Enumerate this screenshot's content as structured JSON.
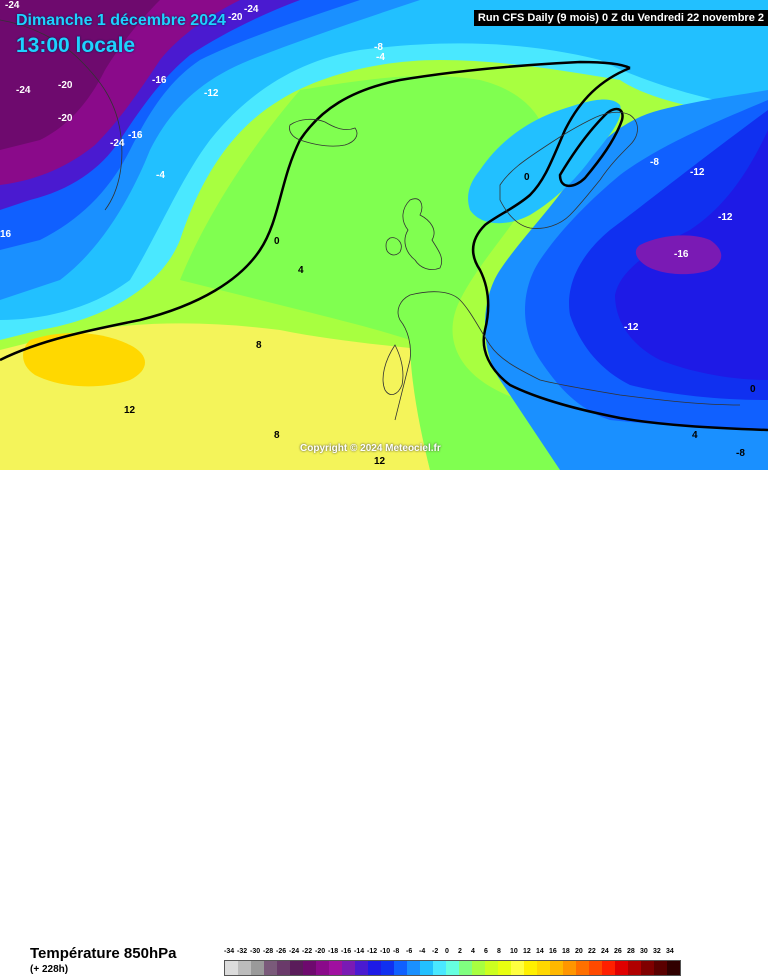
{
  "header": {
    "date": "Dimanche 1 décembre 2024",
    "time": "13:00 locale",
    "run": "Run CFS Daily (9 mois) 0 Z du Vendredi 22 novembre 2"
  },
  "map": {
    "copyright": "Copyright © 2024 Meteociel.fr",
    "contour_labels": [
      "-24",
      "-20",
      "-24",
      "-24",
      "-20",
      "-16",
      "-12",
      "-8",
      "-4",
      "-20",
      "-24",
      "-16",
      "-4",
      "0",
      "4",
      "8",
      "12",
      "16",
      "0",
      "-8",
      "-12",
      "-12",
      "-16",
      "-12",
      "0",
      "4",
      "8",
      "12",
      "-8"
    ]
  },
  "footer": {
    "variable": "Température 850hPa",
    "step": "(+ 228h)"
  },
  "legend": {
    "ticks": [
      "-34",
      "-32",
      "-30",
      "-28",
      "-26",
      "-24",
      "-22",
      "-20",
      "-18",
      "-16",
      "-14",
      "-12",
      "-10",
      "-8",
      "-6",
      "-4",
      "-2",
      "0",
      "2",
      "4",
      "6",
      "8",
      "10",
      "12",
      "14",
      "16",
      "18",
      "20",
      "22",
      "24",
      "26",
      "28",
      "30",
      "32",
      "34"
    ],
    "colors": [
      "#dcdcdc",
      "#bcbcbc",
      "#9a9a9a",
      "#7a5a7a",
      "#6a3a6a",
      "#5a1c5a",
      "#6e0a6e",
      "#8a0a8a",
      "#a010a0",
      "#7a1ab4",
      "#4a1ad0",
      "#1e1ae6",
      "#1030f0",
      "#1060ff",
      "#1a90ff",
      "#22c0ff",
      "#4ae8ff",
      "#66ffe0",
      "#80ff80",
      "#a8ff40",
      "#ccff20",
      "#e8ff10",
      "#ffff40",
      "#fff000",
      "#ffd800",
      "#ffb800",
      "#ff9600",
      "#ff7000",
      "#ff4a00",
      "#ff2000",
      "#e00000",
      "#b00000",
      "#800000",
      "#5a0000",
      "#300000"
    ]
  }
}
